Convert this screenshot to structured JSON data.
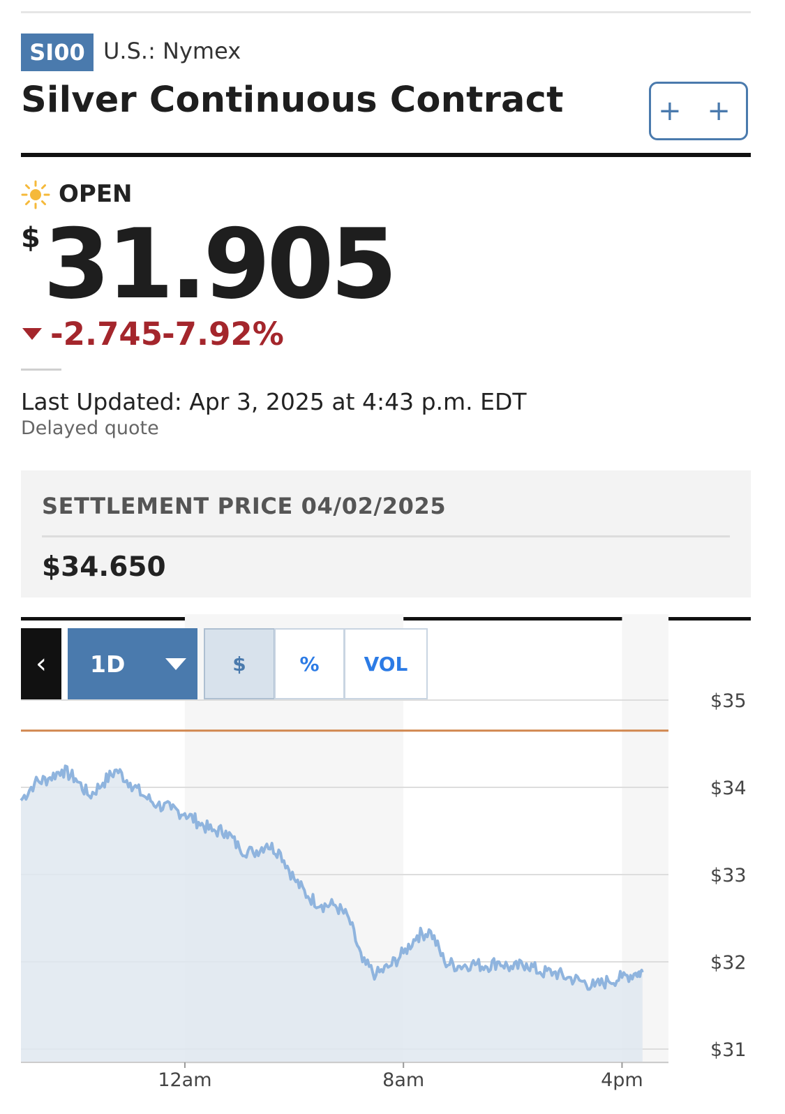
{
  "header": {
    "ticker": "SI00",
    "exchange": "U.S.: Nymex",
    "title": "Silver Continuous Contract",
    "watchlist_button": "+ +"
  },
  "quote": {
    "status": "OPEN",
    "currency_symbol": "$",
    "price": "31.905",
    "change": "-2.745",
    "change_percent": "-7.92%",
    "last_updated": "Last Updated: Apr 3, 2025 at 4:43 p.m. EDT",
    "delayed": "Delayed quote"
  },
  "settlement": {
    "label": "SETTLEMENT PRICE 04/02/2025",
    "value": "$34.650"
  },
  "chart_controls": {
    "back": "‹",
    "range": "1D",
    "modes": [
      "$",
      "%",
      "VOL"
    ],
    "selected_mode": "$"
  },
  "colors": {
    "accent": "#4a7aad",
    "negative": "#a4262c",
    "line": "#8fb4de",
    "fill": "#dfe7f0",
    "settlement_line": "#d1874f"
  },
  "chart_data": {
    "type": "area",
    "x_ticks": [
      "12am",
      "8am",
      "4pm"
    ],
    "y_ticks": [
      "$35",
      "$34",
      "$33",
      "$32",
      "$31"
    ],
    "ylim": [
      31,
      35.2
    ],
    "settlement_reference": 34.65,
    "x_hours": [
      -6,
      -5.5,
      -5,
      -4.5,
      -4,
      -3.5,
      -3,
      -2.5,
      -2,
      -1.5,
      -1,
      -0.5,
      0,
      0.5,
      1,
      1.5,
      2,
      2.5,
      3,
      3.5,
      4,
      4.5,
      5,
      5.5,
      6,
      6.5,
      7,
      7.5,
      8,
      8.5,
      9,
      9.5,
      10,
      10.5,
      11,
      11.5,
      12,
      12.5,
      13,
      13.5,
      14,
      14.5,
      15,
      15.5,
      16,
      16.5,
      16.75
    ],
    "values": [
      33.85,
      34.05,
      34.1,
      34.2,
      34.1,
      33.9,
      34.05,
      34.2,
      34.05,
      33.9,
      33.8,
      33.75,
      33.7,
      33.6,
      33.5,
      33.5,
      33.3,
      33.25,
      33.35,
      33.25,
      32.95,
      32.75,
      32.65,
      32.65,
      32.5,
      32.0,
      31.85,
      31.95,
      32.1,
      32.3,
      32.35,
      32.0,
      31.95,
      31.98,
      31.95,
      32.0,
      31.92,
      31.98,
      31.88,
      31.88,
      31.82,
      31.78,
      31.72,
      31.78,
      31.82,
      31.87,
      31.88
    ],
    "grid": true
  }
}
